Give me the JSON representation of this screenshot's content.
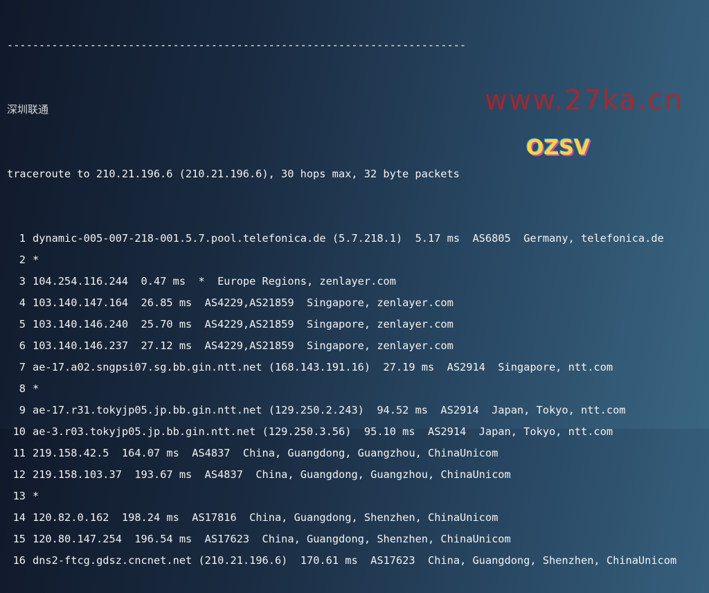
{
  "separator": "------------------------------------------------------------------------",
  "section_title": "深圳联通",
  "header": "traceroute to 210.21.196.6 (210.21.196.6), 30 hops max, 32 byte packets",
  "hops": [
    {
      "n": "1",
      "text": "dynamic-005-007-218-001.5.7.pool.telefonica.de (5.7.218.1)  5.17 ms  AS6805  Germany, telefonica.de"
    },
    {
      "n": "2",
      "text": "*"
    },
    {
      "n": "3",
      "text": "104.254.116.244  0.47 ms  *  Europe Regions, zenlayer.com"
    },
    {
      "n": "4",
      "text": "103.140.147.164  26.85 ms  AS4229,AS21859  Singapore, zenlayer.com"
    },
    {
      "n": "5",
      "text": "103.140.146.240  25.70 ms  AS4229,AS21859  Singapore, zenlayer.com"
    },
    {
      "n": "6",
      "text": "103.140.146.237  27.12 ms  AS4229,AS21859  Singapore, zenlayer.com"
    },
    {
      "n": "7",
      "text": "ae-17.a02.sngpsi07.sg.bb.gin.ntt.net (168.143.191.16)  27.19 ms  AS2914  Singapore, ntt.com"
    },
    {
      "n": "8",
      "text": "*"
    },
    {
      "n": "9",
      "text": "ae-17.r31.tokyjp05.jp.bb.gin.ntt.net (129.250.2.243)  94.52 ms  AS2914  Japan, Tokyo, ntt.com"
    },
    {
      "n": "10",
      "text": "ae-3.r03.tokyjp05.jp.bb.gin.ntt.net (129.250.3.56)  95.10 ms  AS2914  Japan, Tokyo, ntt.com"
    },
    {
      "n": "11",
      "text": "219.158.42.5  164.07 ms  AS4837  China, Guangdong, Guangzhou, ChinaUnicom"
    },
    {
      "n": "12",
      "text": "219.158.103.37  193.67 ms  AS4837  China, Guangdong, Guangzhou, ChinaUnicom"
    },
    {
      "n": "13",
      "text": "*"
    },
    {
      "n": "14",
      "text": "120.82.0.162  198.24 ms  AS17816  China, Guangdong, Shenzhen, ChinaUnicom"
    },
    {
      "n": "15",
      "text": "120.80.147.254  196.54 ms  AS17623  China, Guangdong, Shenzhen, ChinaUnicom"
    },
    {
      "n": "16",
      "text": "dns2-ftcg.gdsz.cncnet.net (210.21.196.6)  170.61 ms  AS17623  China, Guangdong, Shenzhen, ChinaUnicom"
    }
  ],
  "watermark": "www.27ka.cn",
  "logo": "OZSV"
}
